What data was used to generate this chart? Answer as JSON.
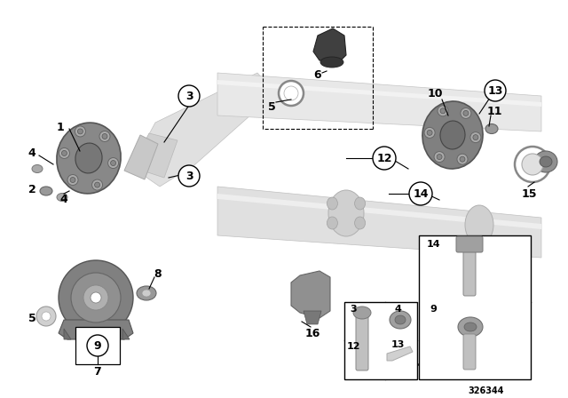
{
  "bg_color": "#ffffff",
  "diagram_number": "326344",
  "shaft_light": "#dcdcdc",
  "shaft_mid": "#c8c8c8",
  "shaft_dark": "#b0b0b0",
  "flange_color": "#888888",
  "flange_dark": "#666666",
  "bolt_color": "#777777",
  "nut_color": "#999999",
  "bearing_color": "#808080",
  "black": "#000000",
  "line_color": "#000000"
}
